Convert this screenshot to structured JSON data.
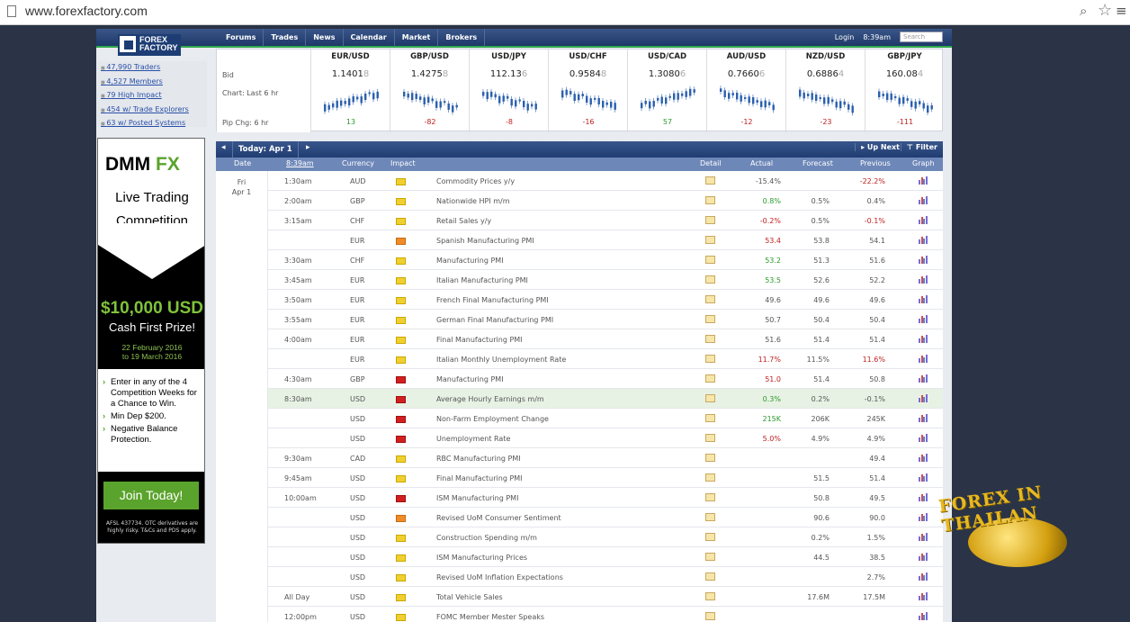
{
  "browser": {
    "url": "www.forexfactory.com"
  },
  "header": {
    "logo": "FOREX FACTORY",
    "nav": [
      "Forums",
      "Trades",
      "News",
      "Calendar",
      "Market",
      "Brokers"
    ],
    "login": "Login",
    "time": "8:39am",
    "search_placeholder": "Search"
  },
  "left_stats": [
    "47,990 Traders",
    "4,527 Members",
    "79 High Impact",
    "454 w/ Trade Explorers",
    "63 w/ Posted Systems"
  ],
  "ad": {
    "brand_a": "DMM",
    "brand_b": "FX",
    "headline_1": "Live Trading",
    "headline_2": "Competition",
    "prize": "$10,000 USD",
    "prize_sub": "Cash First Prize!",
    "dates_1": "22 February 2016",
    "dates_2": "to 19 March 2016",
    "bullets": [
      "Enter in any of the 4 Competition Weeks for a Chance to Win.",
      "Min Dep $200.",
      "Negative Balance Protection."
    ],
    "cta": "Join Today!",
    "disclaimer": "AFSL 437734. OTC derivatives are highly risky. T&Cs and PDS apply."
  },
  "ticker": {
    "labels": {
      "bid": "Bid",
      "chart": "Chart: Last 6 hr",
      "pip": "Pip Chg: 6 hr"
    },
    "pairs": [
      {
        "name": "EUR/USD",
        "price_main": "1.1401",
        "price_tail": "8",
        "change": "13",
        "dir": "up"
      },
      {
        "name": "GBP/USD",
        "price_main": "1.4275",
        "price_tail": "8",
        "change": "-82",
        "dir": "dn"
      },
      {
        "name": "USD/JPY",
        "price_main": "112.13",
        "price_tail": "6",
        "change": "-8",
        "dir": "dn"
      },
      {
        "name": "USD/CHF",
        "price_main": "0.9584",
        "price_tail": "8",
        "change": "-16",
        "dir": "dn"
      },
      {
        "name": "USD/CAD",
        "price_main": "1.3080",
        "price_tail": "6",
        "change": "57",
        "dir": "up"
      },
      {
        "name": "AUD/USD",
        "price_main": "0.7660",
        "price_tail": "6",
        "change": "-12",
        "dir": "dn"
      },
      {
        "name": "NZD/USD",
        "price_main": "0.6886",
        "price_tail": "4",
        "change": "-23",
        "dir": "dn"
      },
      {
        "name": "GBP/JPY",
        "price_main": "160.08",
        "price_tail": "4",
        "change": "-111",
        "dir": "dn"
      }
    ]
  },
  "calendar": {
    "today_label": "Today: Apr 1",
    "up_next": "Up Next",
    "filter": "Filter",
    "columns": {
      "date": "Date",
      "time": "8:39am",
      "currency": "Currency",
      "impact": "Impact",
      "detail": "Detail",
      "actual": "Actual",
      "forecast": "Forecast",
      "previous": "Previous",
      "graph": "Graph"
    },
    "day_1": "Fri",
    "day_2": "Apr 1",
    "rows": [
      {
        "time": "1:30am",
        "cur": "AUD",
        "imp": "y",
        "event": "Commodity Prices y/y",
        "actual": "-15.4%",
        "ac": "",
        "forecast": "",
        "previous": "-22.2%",
        "pc": "red"
      },
      {
        "time": "2:00am",
        "cur": "GBP",
        "imp": "y",
        "event": "Nationwide HPI m/m",
        "actual": "0.8%",
        "ac": "grn",
        "forecast": "0.5%",
        "previous": "0.4%",
        "pc": ""
      },
      {
        "time": "3:15am",
        "cur": "CHF",
        "imp": "y",
        "event": "Retail Sales y/y",
        "actual": "-0.2%",
        "ac": "red",
        "forecast": "0.5%",
        "previous": "-0.1%",
        "pc": "red"
      },
      {
        "time": "",
        "cur": "EUR",
        "imp": "o",
        "event": "Spanish Manufacturing PMI",
        "actual": "53.4",
        "ac": "red",
        "forecast": "53.8",
        "previous": "54.1",
        "pc": ""
      },
      {
        "time": "3:30am",
        "cur": "CHF",
        "imp": "y",
        "event": "Manufacturing PMI",
        "actual": "53.2",
        "ac": "grn",
        "forecast": "51.3",
        "previous": "51.6",
        "pc": ""
      },
      {
        "time": "3:45am",
        "cur": "EUR",
        "imp": "y",
        "event": "Italian Manufacturing PMI",
        "actual": "53.5",
        "ac": "grn",
        "forecast": "52.6",
        "previous": "52.2",
        "pc": ""
      },
      {
        "time": "3:50am",
        "cur": "EUR",
        "imp": "y",
        "event": "French Final Manufacturing PMI",
        "actual": "49.6",
        "ac": "",
        "forecast": "49.6",
        "previous": "49.6",
        "pc": ""
      },
      {
        "time": "3:55am",
        "cur": "EUR",
        "imp": "y",
        "event": "German Final Manufacturing PMI",
        "actual": "50.7",
        "ac": "",
        "forecast": "50.4",
        "previous": "50.4",
        "pc": ""
      },
      {
        "time": "4:00am",
        "cur": "EUR",
        "imp": "y",
        "event": "Final Manufacturing PMI",
        "actual": "51.6",
        "ac": "",
        "forecast": "51.4",
        "previous": "51.4",
        "pc": ""
      },
      {
        "time": "",
        "cur": "EUR",
        "imp": "y",
        "event": "Italian Monthly Unemployment Rate",
        "actual": "11.7%",
        "ac": "red",
        "forecast": "11.5%",
        "previous": "11.6%",
        "pc": "red"
      },
      {
        "time": "4:30am",
        "cur": "GBP",
        "imp": "r",
        "event": "Manufacturing PMI",
        "actual": "51.0",
        "ac": "red",
        "forecast": "51.4",
        "previous": "50.8",
        "pc": ""
      },
      {
        "time": "8:30am",
        "cur": "USD",
        "imp": "r",
        "event": "Average Hourly Earnings m/m",
        "actual": "0.3%",
        "ac": "grn",
        "forecast": "0.2%",
        "previous": "-0.1%",
        "pc": "",
        "hl": true
      },
      {
        "time": "",
        "cur": "USD",
        "imp": "r",
        "event": "Non-Farm Employment Change",
        "actual": "215K",
        "ac": "grn",
        "forecast": "206K",
        "previous": "245K",
        "pc": ""
      },
      {
        "time": "",
        "cur": "USD",
        "imp": "r",
        "event": "Unemployment Rate",
        "actual": "5.0%",
        "ac": "red",
        "forecast": "4.9%",
        "previous": "4.9%",
        "pc": ""
      },
      {
        "time": "9:30am",
        "cur": "CAD",
        "imp": "y",
        "event": "RBC Manufacturing PMI",
        "actual": "",
        "ac": "",
        "forecast": "",
        "previous": "49.4",
        "pc": ""
      },
      {
        "time": "9:45am",
        "cur": "USD",
        "imp": "y",
        "event": "Final Manufacturing PMI",
        "actual": "",
        "ac": "",
        "forecast": "51.5",
        "previous": "51.4",
        "pc": ""
      },
      {
        "time": "10:00am",
        "cur": "USD",
        "imp": "r",
        "event": "ISM Manufacturing PMI",
        "actual": "",
        "ac": "",
        "forecast": "50.8",
        "previous": "49.5",
        "pc": ""
      },
      {
        "time": "",
        "cur": "USD",
        "imp": "o",
        "event": "Revised UoM Consumer Sentiment",
        "actual": "",
        "ac": "",
        "forecast": "90.6",
        "previous": "90.0",
        "pc": ""
      },
      {
        "time": "",
        "cur": "USD",
        "imp": "y",
        "event": "Construction Spending m/m",
        "actual": "",
        "ac": "",
        "forecast": "0.2%",
        "previous": "1.5%",
        "pc": ""
      },
      {
        "time": "",
        "cur": "USD",
        "imp": "y",
        "event": "ISM Manufacturing Prices",
        "actual": "",
        "ac": "",
        "forecast": "44.5",
        "previous": "38.5",
        "pc": ""
      },
      {
        "time": "",
        "cur": "USD",
        "imp": "y",
        "event": "Revised UoM Inflation Expectations",
        "actual": "",
        "ac": "",
        "forecast": "",
        "previous": "2.7%",
        "pc": ""
      },
      {
        "time": "All Day",
        "cur": "USD",
        "imp": "y",
        "event": "Total Vehicle Sales",
        "actual": "",
        "ac": "",
        "forecast": "17.6M",
        "previous": "17.5M",
        "pc": ""
      },
      {
        "time": "12:00pm",
        "cur": "USD",
        "imp": "y",
        "event": "FOMC Member Mester Speaks",
        "actual": "",
        "ac": "",
        "forecast": "",
        "previous": "",
        "pc": ""
      }
    ]
  },
  "watermark": "FOREX IN THAILAN"
}
